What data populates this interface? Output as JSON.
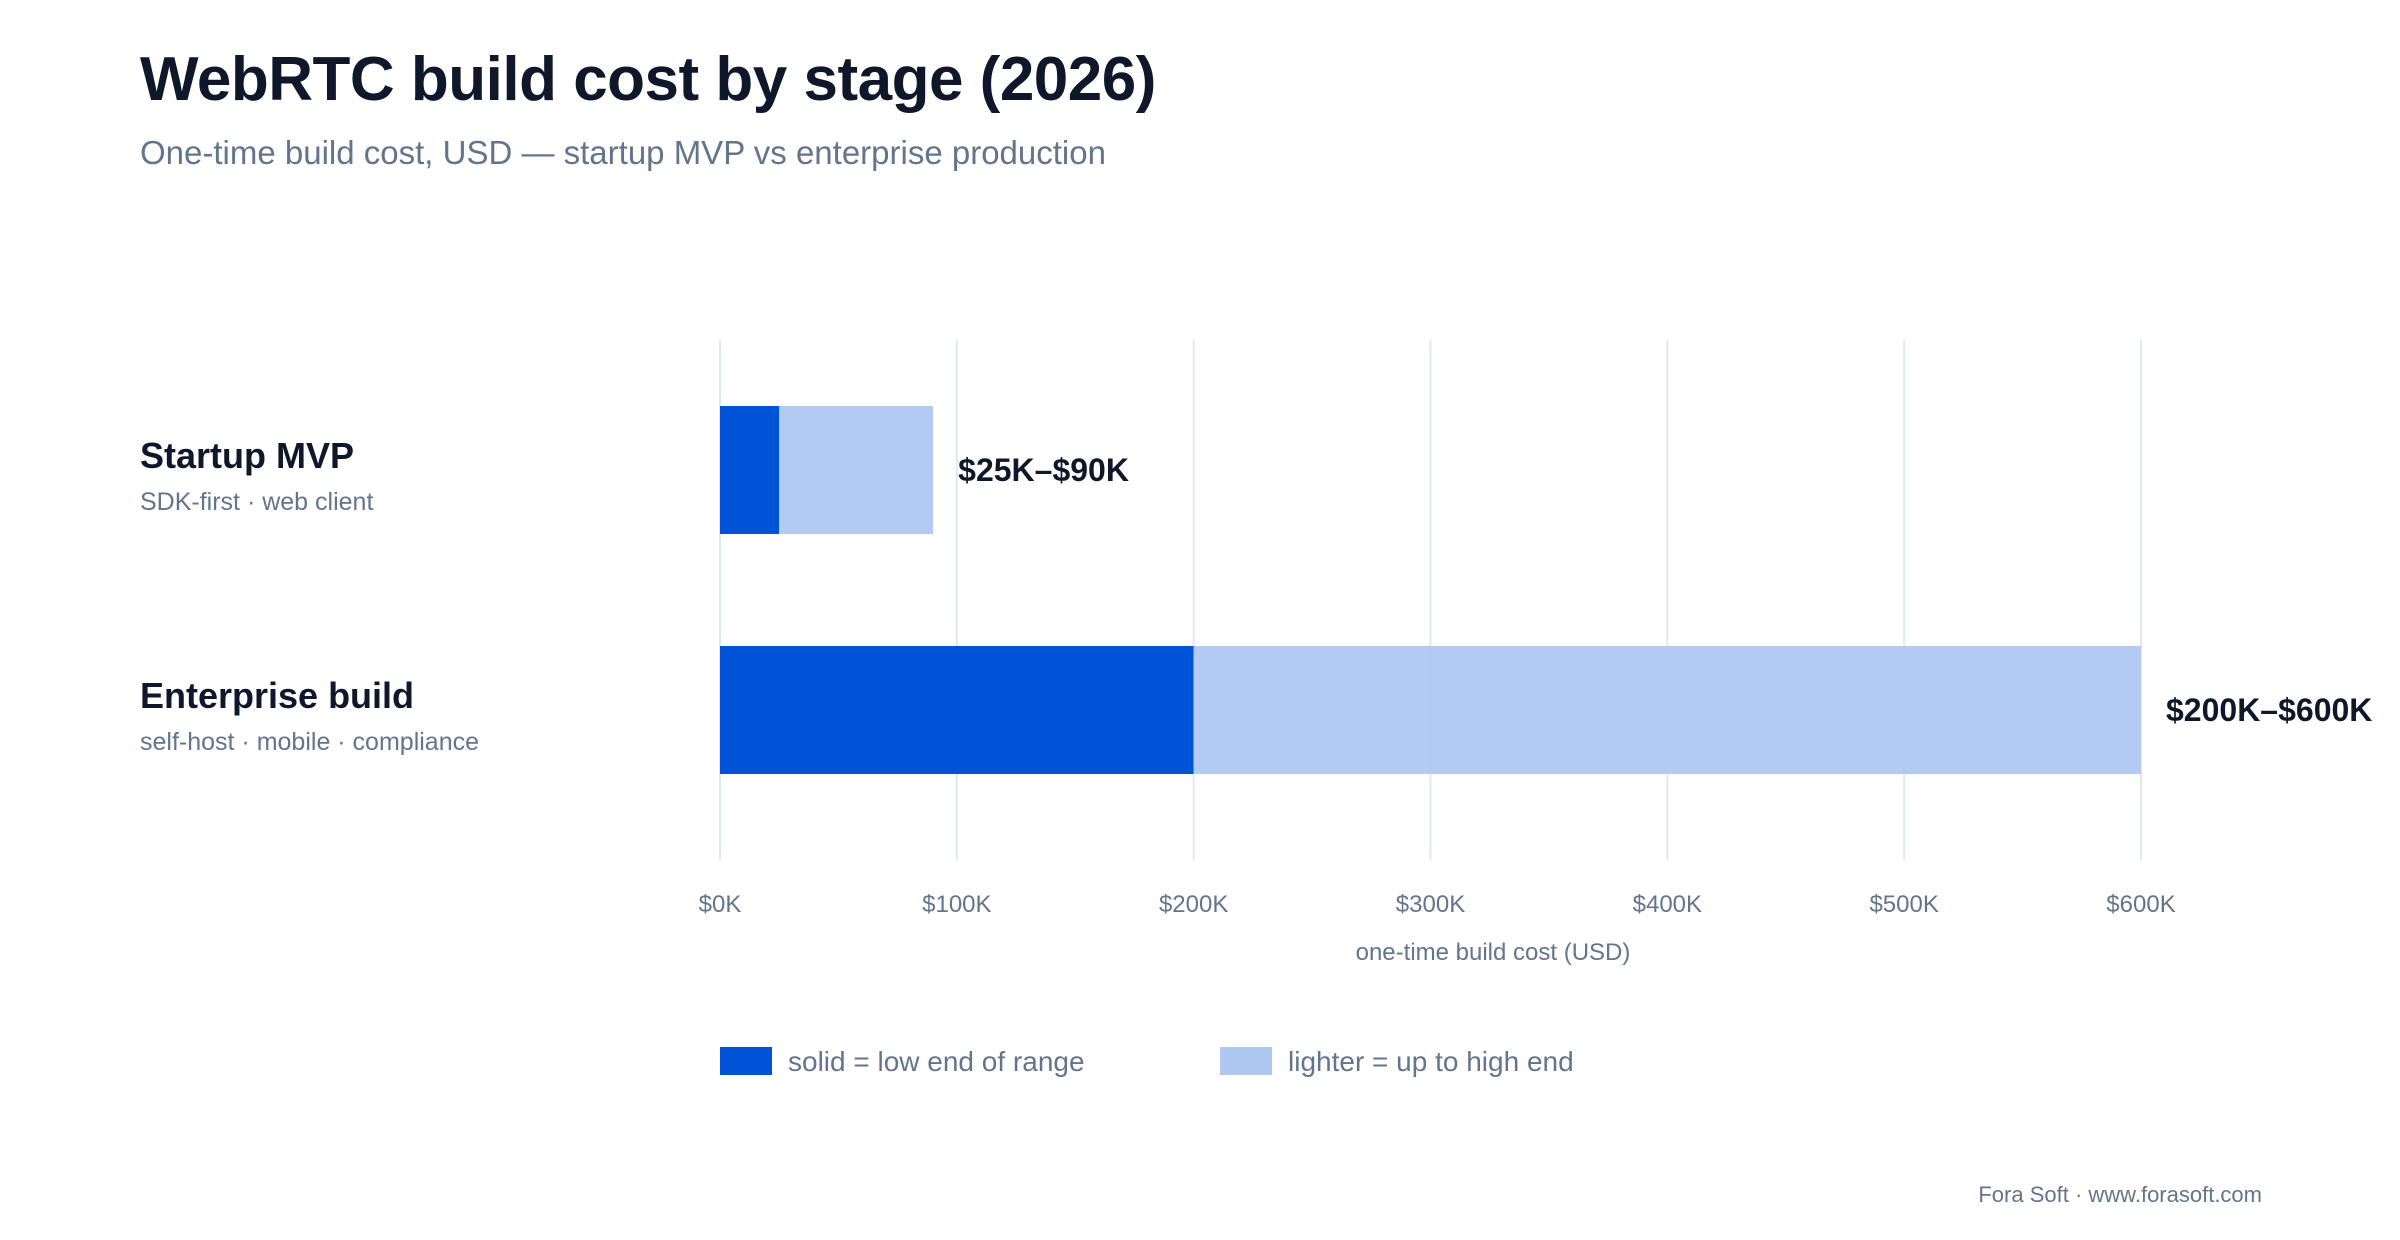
{
  "header": {
    "title": "WebRTC build cost by stage (2026)",
    "subtitle": "One-time build cost, USD — startup MVP vs enterprise production"
  },
  "colors": {
    "low": "#0052d6",
    "high": "#afc8f2",
    "grid": "#e2e8f0",
    "label": "#0f172a",
    "muted": "#64748b"
  },
  "chart_data": {
    "type": "bar",
    "orientation": "horizontal",
    "stacked": true,
    "categories": [
      {
        "name": "Startup MVP",
        "sublabel": "SDK-first · web client",
        "low": 25000,
        "high": 90000,
        "range_label": "$25K–$90K"
      },
      {
        "name": "Enterprise build",
        "sublabel": "self-host · mobile · compliance",
        "low": 200000,
        "high": 600000,
        "range_label": "$200K–$600K"
      }
    ],
    "xlabel": "one-time build cost (USD)",
    "xlim": [
      0,
      600000
    ],
    "xticks": [
      0,
      100000,
      200000,
      300000,
      400000,
      500000,
      600000
    ],
    "xtick_labels": [
      "$0K",
      "$100K",
      "$200K",
      "$300K",
      "$400K",
      "$500K",
      "$600K"
    ],
    "grid": true,
    "legend": [
      {
        "label": "solid = low end of range",
        "color": "#0052d6"
      },
      {
        "label": "lighter = up to high end",
        "color": "#afc8f2"
      }
    ]
  },
  "footer": {
    "credit": "Fora Soft · www.forasoft.com"
  }
}
